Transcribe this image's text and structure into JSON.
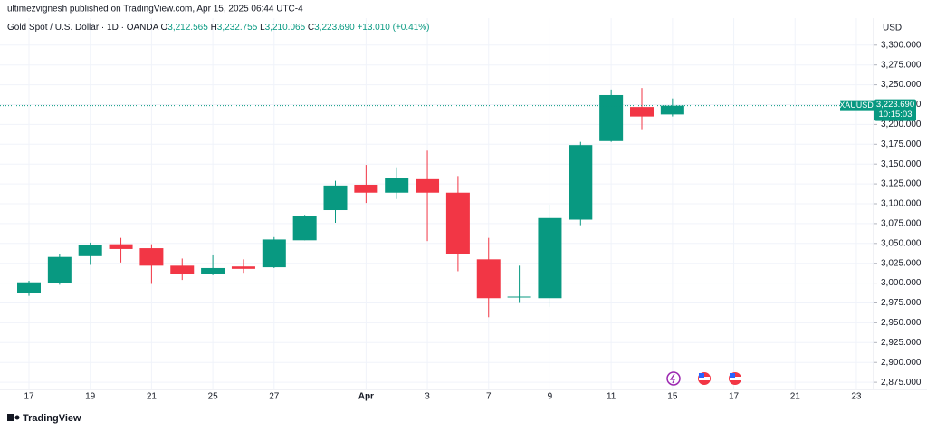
{
  "header": "ultimezvignesh published on TradingView.com, Apr 15, 2025 06:44 UTC-4",
  "footer": "TradingView",
  "chart_data": {
    "type": "candlestick",
    "title": "Gold Spot / U.S. Dollar · 1D · OANDA",
    "legend": [
      {
        "label": "O",
        "value": "3,212.565"
      },
      {
        "label": "H",
        "value": "3,232.755"
      },
      {
        "label": "L",
        "value": "3,210.065"
      },
      {
        "label": "C",
        "value": "3,223.690"
      }
    ],
    "change": "+13.010 (+0.41%)",
    "currency": "USD",
    "symbol": "XAUUSD",
    "last_price": {
      "value": 3223.69,
      "label": "3,223.690"
    },
    "countdown": "10:15:03",
    "up_color": "#089981",
    "down_color": "#f23645",
    "grid": true,
    "categories": [
      "17",
      null,
      "19",
      null,
      "21",
      null,
      "25",
      null,
      "27",
      null,
      null,
      "Apr",
      null,
      "3",
      null,
      "7",
      null,
      "9",
      null,
      "11",
      null,
      "15",
      null,
      "17",
      null,
      "21",
      null,
      "23"
    ],
    "open": [
      2987,
      3000,
      3034,
      3049,
      3044,
      3022,
      3011,
      3021,
      3020,
      3054,
      3092,
      3124,
      3114,
      3131,
      3114,
      3030,
      2982,
      2981,
      3080,
      3179,
      3222,
      3212.565,
      null,
      null,
      null,
      null,
      null,
      null
    ],
    "high": [
      3003,
      3037,
      3051,
      3057,
      3049,
      3031,
      3035,
      3030,
      3058,
      3086,
      3129,
      3149,
      3146,
      3167,
      3135,
      3057,
      3022,
      3099,
      3178,
      3244,
      3246,
      3232.755,
      null,
      null,
      null,
      null,
      null,
      null
    ],
    "low": [
      2984,
      2998,
      3023,
      3026,
      2999,
      3004,
      3010,
      3013,
      3019,
      3054,
      3076,
      3101,
      3106,
      3053,
      3015,
      2957,
      2975,
      2970,
      3073,
      3178,
      3194,
      3210.065,
      null,
      null,
      null,
      null,
      null,
      null
    ],
    "close": [
      3001,
      3033,
      3048,
      3043,
      3022,
      3012,
      3019,
      3018,
      3055,
      3085,
      3123,
      3114,
      3133,
      3114,
      3037,
      2981,
      2983,
      3082,
      3174,
      3237,
      3210,
      3223.69,
      null,
      null,
      null,
      null,
      null,
      null
    ],
    "ylim": [
      2866,
      3334
    ],
    "yticks": [
      {
        "value": 3300,
        "label": "3,300.000"
      },
      {
        "value": 3275,
        "label": "3,275.000"
      },
      {
        "value": 3250,
        "label": "3,250.000"
      },
      {
        "value": 3225,
        "label": "3,225.000"
      },
      {
        "value": 3200,
        "label": "3,200.000"
      },
      {
        "value": 3175,
        "label": "3,175.000"
      },
      {
        "value": 3150,
        "label": "3,150.000"
      },
      {
        "value": 3125,
        "label": "3,125.000"
      },
      {
        "value": 3100,
        "label": "3,100.000"
      },
      {
        "value": 3075,
        "label": "3,075.000"
      },
      {
        "value": 3050,
        "label": "3,050.000"
      },
      {
        "value": 3025,
        "label": "3,025.000"
      },
      {
        "value": 3000,
        "label": "3,000.000"
      },
      {
        "value": 2975,
        "label": "2,975.000"
      },
      {
        "value": 2950,
        "label": "2,950.000"
      },
      {
        "value": 2925,
        "label": "2,925.000"
      },
      {
        "value": 2900,
        "label": "2,900.000"
      },
      {
        "value": 2875,
        "label": "2,875.000"
      }
    ]
  }
}
